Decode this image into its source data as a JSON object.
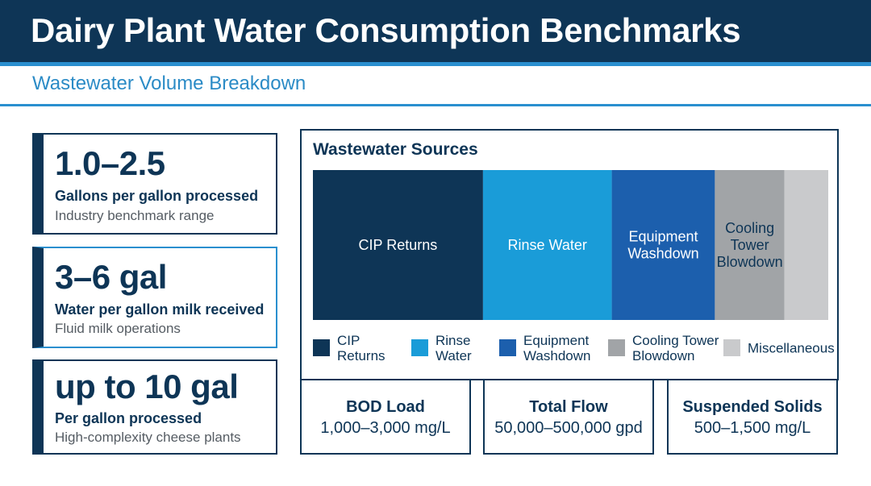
{
  "header": {
    "title": "Dairy Plant Water Consumption Benchmarks",
    "subtitle": "Wastewater Volume Breakdown"
  },
  "stats": [
    {
      "value": "1.0–2.5",
      "label": "Gallons per gallon processed",
      "note": "Industry benchmark range"
    },
    {
      "value": "3–6 gal",
      "label": "Water per gallon milk received",
      "note": "Fluid milk operations"
    },
    {
      "value": "up to 10 gal",
      "label": "Per gallon processed",
      "note": "High-complexity cheese plants"
    }
  ],
  "chart_data": {
    "type": "bar",
    "stacked": "100%",
    "title": "Wastewater Sources",
    "unit": "percent",
    "categories": [
      "CIP Returns",
      "Rinse Water",
      "Equipment Washdown",
      "Cooling Tower Blowdown",
      "Miscellaneous"
    ],
    "bar_labels": [
      [
        "CIP Returns"
      ],
      [
        "Rinse Water"
      ],
      [
        "Equipment",
        "Washdown"
      ],
      [
        "Cooling",
        "Tower",
        "Blowdown"
      ],
      []
    ],
    "legend_labels": [
      [
        "CIP",
        "Returns"
      ],
      [
        "Rinse",
        "Water"
      ],
      [
        "Equipment",
        "Washdown"
      ],
      [
        "Cooling Tower",
        "Blowdown"
      ],
      [
        "Miscellaneous"
      ]
    ],
    "values": [
      33,
      25,
      20,
      13.5,
      8.5
    ],
    "colors": [
      "#0e3556",
      "#1a9cd8",
      "#1c5fad",
      "#a1a4a7",
      "#c9cacc"
    ],
    "label_colors": [
      "#ffffff",
      "#ffffff",
      "#ffffff",
      "#0e3556",
      "#0e3556"
    ],
    "legend_position": "bottom"
  },
  "metrics": [
    {
      "label": "BOD Load",
      "value": "1,000–3,000 mg/L"
    },
    {
      "label": "Total Flow",
      "value": "50,000–500,000 gpd"
    },
    {
      "label": "Suspended Solids",
      "value": "500–1,500 mg/L"
    }
  ]
}
